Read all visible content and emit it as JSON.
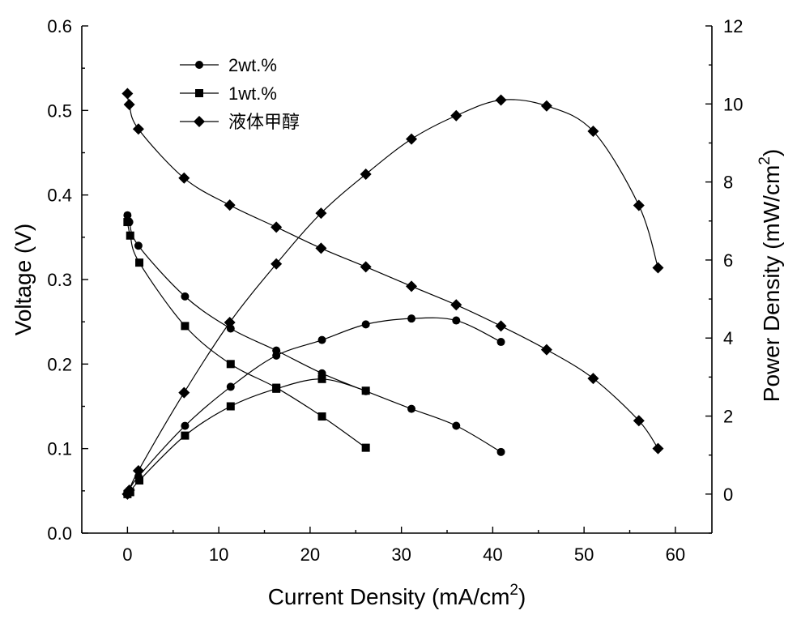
{
  "chart_data": {
    "type": "line",
    "xlabel": "Current Density (mA/cm",
    "xlabel_sup": "2",
    "xlabel_suffix": ")",
    "ylabel_left": "Voltage (V)",
    "ylabel_right": "Power Density (mW/cm",
    "ylabel_right_sup": "2",
    "ylabel_right_suffix": ")",
    "xlim": [
      -5,
      64
    ],
    "ylim_left": [
      0.0,
      0.6
    ],
    "ylim_right": [
      -1,
      12
    ],
    "x_ticks": [
      0,
      10,
      20,
      30,
      40,
      50,
      60
    ],
    "x_tick_labels": [
      "0",
      "10",
      "20",
      "30",
      "40",
      "50",
      "60"
    ],
    "y_left_ticks": [
      0.0,
      0.1,
      0.2,
      0.3,
      0.4,
      0.5,
      0.6
    ],
    "y_left_tick_labels": [
      "0.0",
      "0.1",
      "0.2",
      "0.3",
      "0.4",
      "0.5",
      "0.6"
    ],
    "y_right_ticks": [
      0,
      2,
      4,
      6,
      8,
      10,
      12
    ],
    "y_right_tick_labels": [
      "0",
      "2",
      "4",
      "6",
      "8",
      "10",
      "12"
    ],
    "legend": [
      {
        "label": "2wt.%",
        "marker": "circle"
      },
      {
        "label": "1wt.%",
        "marker": "square"
      },
      {
        "label": "液体甲醇",
        "marker": "diamond"
      }
    ],
    "series": [
      {
        "name": "2wt.% Voltage",
        "axis": "left",
        "marker": "circle",
        "x": [
          0,
          0.2,
          1.2,
          6.3,
          11.3,
          16.3,
          21.3,
          26.1,
          31.1,
          36.0,
          40.9
        ],
        "y": [
          0.376,
          0.368,
          0.34,
          0.28,
          0.242,
          0.216,
          0.189,
          0.168,
          0.147,
          0.127,
          0.096
        ]
      },
      {
        "name": "2wt.% Power Density",
        "axis": "right",
        "marker": "circle",
        "x": [
          0,
          0.2,
          1.2,
          6.3,
          11.3,
          16.3,
          21.3,
          26.1,
          31.1,
          36.0,
          40.9
        ],
        "y": [
          0.0,
          0.1,
          0.45,
          1.75,
          2.75,
          3.55,
          3.95,
          4.35,
          4.5,
          4.45,
          3.9
        ]
      },
      {
        "name": "1wt.% Voltage",
        "axis": "left",
        "marker": "square",
        "x": [
          0,
          0.3,
          1.3,
          6.3,
          11.3,
          16.3,
          21.3,
          26.1
        ],
        "y": [
          0.368,
          0.352,
          0.32,
          0.245,
          0.2,
          0.172,
          0.138,
          0.101
        ]
      },
      {
        "name": "1wt.% Power Density",
        "axis": "right",
        "marker": "square",
        "x": [
          0,
          0.3,
          1.3,
          6.3,
          11.3,
          16.3,
          21.3,
          26.1
        ],
        "y": [
          0.0,
          0.05,
          0.35,
          1.5,
          2.25,
          2.7,
          2.95,
          2.65
        ]
      },
      {
        "name": "液体甲醇 Voltage",
        "axis": "left",
        "marker": "diamond",
        "x": [
          0,
          0.2,
          1.2,
          6.2,
          11.2,
          16.3,
          21.2,
          26.1,
          31.1,
          36.0,
          40.9,
          45.9,
          51.0,
          56.0,
          58.1
        ],
        "y": [
          0.52,
          0.507,
          0.478,
          0.42,
          0.388,
          0.362,
          0.337,
          0.315,
          0.292,
          0.27,
          0.245,
          0.217,
          0.183,
          0.133,
          0.1
        ]
      },
      {
        "name": "液体甲醇 Power Density",
        "axis": "right",
        "marker": "diamond",
        "x": [
          0,
          0.2,
          1.2,
          6.2,
          11.2,
          16.3,
          21.2,
          26.1,
          31.1,
          36.0,
          40.9,
          45.9,
          51.0,
          56.0,
          58.1
        ],
        "y": [
          0.0,
          0.1,
          0.6,
          2.6,
          4.4,
          5.9,
          7.2,
          8.2,
          9.1,
          9.7,
          10.1,
          9.95,
          9.3,
          7.4,
          5.8
        ]
      }
    ]
  }
}
